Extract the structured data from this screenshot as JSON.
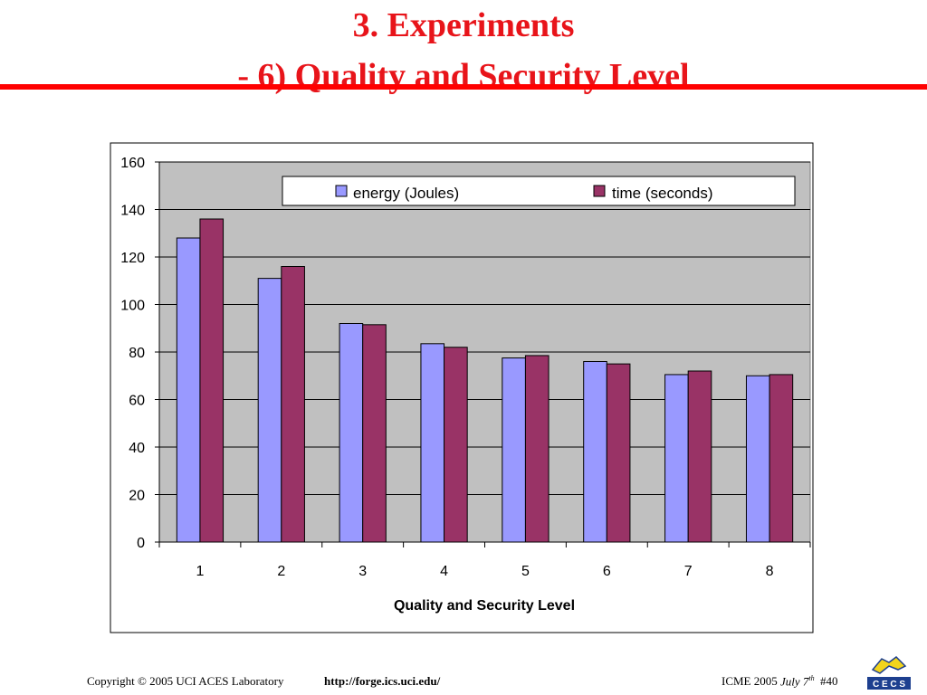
{
  "slide": {
    "title_line1": "3. Experiments",
    "title_line2": "- 6) Quality and Security Level"
  },
  "colors": {
    "title": "#e8141a",
    "rule": "#ff0000",
    "plot_background": "#c0c0c0",
    "energy": "#9999ff",
    "time": "#993366"
  },
  "chart_data": {
    "type": "bar",
    "categories": [
      "1",
      "2",
      "3",
      "4",
      "5",
      "6",
      "7",
      "8"
    ],
    "series": [
      {
        "name": "energy (Joules)",
        "values": [
          128,
          111,
          92,
          83.5,
          77.5,
          76,
          70.5,
          70
        ]
      },
      {
        "name": "time (seconds)",
        "values": [
          136,
          116,
          91.5,
          82,
          78.5,
          75,
          72,
          70.5
        ]
      }
    ],
    "xlabel": "Quality and Security Level",
    "ylabel": "",
    "ylim": [
      0,
      160
    ],
    "yticks": [
      "0",
      "20",
      "40",
      "60",
      "80",
      "100",
      "120",
      "140",
      "160"
    ],
    "grid": true,
    "legend_position": "top"
  },
  "footer": {
    "copyright": "Copyright © 2005  UCI ACES Laboratory",
    "url": "http://forge.ics.uci.edu/",
    "event": "ICME 2005",
    "date_main": "July 7",
    "date_suffix": "th",
    "page": "#40",
    "logo_text": "C E C S"
  }
}
